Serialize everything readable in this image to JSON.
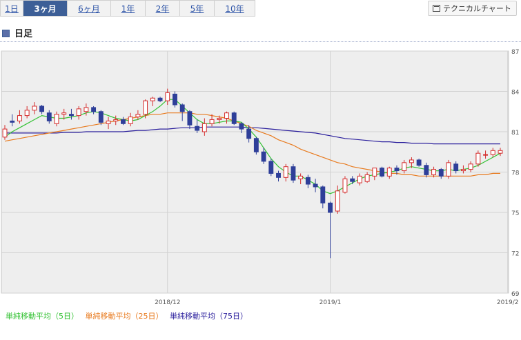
{
  "range_tabs": [
    {
      "label": "1日",
      "active": false
    },
    {
      "label": "3ヶ月",
      "active": true
    },
    {
      "label": "6ヶ月",
      "active": false
    },
    {
      "label": "1年",
      "active": false
    },
    {
      "label": "2年",
      "active": false
    },
    {
      "label": "5年",
      "active": false
    },
    {
      "label": "10年",
      "active": false
    }
  ],
  "technical_button_label": "テクニカルチャート",
  "section_label": "日足",
  "chart_data": {
    "type": "candlestick",
    "y_ticks": [
      "87",
      "84",
      "81",
      "78",
      "75",
      "72",
      "69"
    ],
    "ylim": [
      69,
      87
    ],
    "x_tick_labels": [
      "2018/12",
      "2019/1",
      "2019/2"
    ],
    "x_tick_index": [
      22,
      44,
      68
    ],
    "grid": true,
    "up_color": "#d42a2a",
    "down_color": "#2e3f99",
    "candles": [
      [
        80.6,
        81.5,
        80.4,
        81.2
      ],
      [
        81.8,
        82.3,
        81.4,
        81.7
      ],
      [
        81.8,
        82.6,
        81.6,
        82.2
      ],
      [
        82.2,
        82.9,
        82.0,
        82.6
      ],
      [
        82.6,
        83.2,
        82.3,
        82.9
      ],
      [
        82.9,
        83.0,
        82.3,
        82.5
      ],
      [
        82.4,
        82.6,
        81.6,
        81.8
      ],
      [
        81.6,
        82.5,
        81.4,
        82.3
      ],
      [
        82.3,
        82.7,
        81.9,
        82.4
      ],
      [
        82.3,
        82.7,
        81.9,
        82.2
      ],
      [
        82.2,
        82.9,
        81.9,
        82.7
      ],
      [
        82.5,
        83.1,
        82.2,
        82.8
      ],
      [
        82.8,
        82.9,
        82.3,
        82.5
      ],
      [
        82.5,
        82.6,
        81.5,
        81.7
      ],
      [
        81.6,
        82.1,
        81.2,
        81.8
      ],
      [
        81.8,
        82.2,
        81.5,
        81.9
      ],
      [
        81.9,
        82.1,
        81.5,
        81.6
      ],
      [
        81.6,
        82.4,
        81.4,
        82.1
      ],
      [
        82.1,
        82.6,
        81.9,
        82.3
      ],
      [
        82.3,
        83.4,
        82.0,
        83.3
      ],
      [
        83.3,
        83.6,
        82.9,
        83.5
      ],
      [
        83.5,
        83.6,
        83.2,
        83.3
      ],
      [
        83.3,
        84.2,
        83.0,
        83.9
      ],
      [
        83.8,
        84.0,
        82.8,
        83.0
      ],
      [
        83.0,
        83.1,
        81.8,
        82.5
      ],
      [
        82.5,
        82.6,
        81.2,
        81.5
      ],
      [
        81.4,
        81.9,
        80.9,
        81.1
      ],
      [
        81.0,
        82.0,
        80.7,
        81.6
      ],
      [
        81.6,
        82.3,
        81.4,
        81.9
      ],
      [
        81.9,
        82.2,
        81.6,
        82.0
      ],
      [
        82.0,
        82.5,
        81.6,
        82.4
      ],
      [
        82.4,
        82.5,
        81.5,
        81.6
      ],
      [
        81.6,
        81.7,
        80.9,
        81.2
      ],
      [
        81.2,
        81.5,
        80.2,
        80.5
      ],
      [
        80.5,
        80.6,
        79.3,
        79.5
      ],
      [
        79.5,
        79.8,
        78.6,
        78.8
      ],
      [
        78.8,
        79.0,
        77.7,
        77.9
      ],
      [
        77.9,
        78.1,
        77.3,
        77.6
      ],
      [
        77.6,
        78.6,
        77.3,
        78.4
      ],
      [
        78.4,
        78.6,
        77.2,
        77.4
      ],
      [
        77.5,
        77.9,
        77.1,
        77.7
      ],
      [
        77.6,
        77.8,
        76.8,
        77.1
      ],
      [
        77.1,
        77.5,
        76.5,
        76.9
      ],
      [
        76.9,
        77.0,
        75.3,
        75.7
      ],
      [
        75.7,
        75.8,
        71.6,
        75.0
      ],
      [
        75.1,
        77.0,
        74.9,
        76.6
      ],
      [
        76.5,
        77.7,
        76.4,
        77.5
      ],
      [
        77.5,
        77.7,
        77.1,
        77.3
      ],
      [
        77.2,
        77.9,
        77.0,
        77.7
      ],
      [
        77.3,
        78.0,
        77.2,
        77.8
      ],
      [
        77.7,
        78.3,
        77.4,
        78.3
      ],
      [
        78.3,
        78.4,
        77.6,
        77.7
      ],
      [
        77.7,
        78.4,
        77.5,
        78.3
      ],
      [
        78.3,
        78.5,
        77.8,
        78.1
      ],
      [
        78.1,
        78.9,
        77.9,
        78.7
      ],
      [
        78.7,
        79.1,
        78.3,
        78.9
      ],
      [
        78.9,
        79.0,
        78.4,
        78.5
      ],
      [
        78.5,
        78.7,
        77.6,
        77.8
      ],
      [
        77.8,
        78.4,
        77.6,
        78.2
      ],
      [
        78.2,
        78.3,
        77.5,
        77.7
      ],
      [
        77.7,
        78.9,
        77.5,
        78.7
      ],
      [
        78.6,
        78.8,
        77.9,
        78.1
      ],
      [
        78.1,
        78.5,
        77.9,
        78.2
      ],
      [
        78.2,
        78.8,
        78.0,
        78.6
      ],
      [
        78.6,
        79.6,
        78.4,
        79.4
      ],
      [
        79.3,
        79.6,
        79.0,
        79.3
      ],
      [
        79.3,
        79.8,
        79.1,
        79.6
      ],
      [
        79.4,
        79.8,
        79.2,
        79.6
      ]
    ],
    "series": [
      {
        "name": "単純移動平均（5日）",
        "color": "#33c233",
        "values": [
          80.6,
          81.0,
          81.3,
          81.6,
          81.9,
          82.2,
          82.1,
          82.0,
          82.0,
          82.1,
          82.2,
          82.4,
          82.5,
          82.4,
          82.2,
          82.0,
          81.9,
          81.8,
          81.9,
          82.2,
          82.5,
          82.9,
          83.4,
          83.4,
          82.9,
          82.4,
          81.9,
          81.6,
          81.6,
          81.7,
          81.8,
          81.8,
          81.7,
          81.2,
          80.6,
          79.8,
          79.0,
          78.4,
          78.0,
          77.7,
          77.7,
          77.4,
          77.1,
          76.6,
          76.4,
          76.6,
          76.9,
          77.2,
          77.5,
          77.7,
          77.8,
          77.9,
          78.0,
          78.1,
          78.3,
          78.4,
          78.3,
          78.2,
          78.1,
          78.1,
          78.2,
          78.1,
          78.2,
          78.3,
          78.5,
          78.8,
          79.1,
          79.4
        ]
      },
      {
        "name": "単純移動平均（25日）",
        "color": "#e87a1e",
        "values": [
          80.3,
          80.4,
          80.5,
          80.6,
          80.7,
          80.8,
          80.9,
          81.0,
          81.1,
          81.2,
          81.3,
          81.4,
          81.5,
          81.6,
          81.7,
          81.8,
          81.9,
          82.0,
          82.1,
          82.2,
          82.3,
          82.3,
          82.4,
          82.4,
          82.4,
          82.4,
          82.3,
          82.3,
          82.2,
          82.1,
          82.0,
          81.8,
          81.6,
          81.4,
          81.1,
          80.9,
          80.7,
          80.4,
          80.2,
          80.0,
          79.7,
          79.5,
          79.3,
          79.1,
          78.9,
          78.7,
          78.6,
          78.4,
          78.3,
          78.2,
          78.1,
          78.0,
          77.9,
          77.9,
          77.8,
          77.8,
          77.7,
          77.7,
          77.7,
          77.7,
          77.7,
          77.7,
          77.7,
          77.7,
          77.8,
          77.8,
          77.9,
          77.9
        ]
      },
      {
        "name": "単純移動平均（75日）",
        "color": "#2a1e9c",
        "values": [
          80.9,
          80.9,
          80.9,
          80.9,
          80.9,
          80.9,
          80.9,
          80.9,
          80.95,
          80.95,
          80.95,
          81.0,
          81.0,
          81.0,
          81.0,
          81.0,
          81.0,
          81.05,
          81.1,
          81.1,
          81.15,
          81.2,
          81.2,
          81.25,
          81.3,
          81.3,
          81.3,
          81.35,
          81.35,
          81.35,
          81.35,
          81.35,
          81.35,
          81.3,
          81.3,
          81.25,
          81.2,
          81.15,
          81.1,
          81.05,
          81.0,
          80.95,
          80.9,
          80.8,
          80.7,
          80.6,
          80.5,
          80.45,
          80.4,
          80.35,
          80.3,
          80.25,
          80.25,
          80.2,
          80.2,
          80.15,
          80.15,
          80.15,
          80.1,
          80.1,
          80.1,
          80.1,
          80.1,
          80.1,
          80.1,
          80.1,
          80.1,
          80.1
        ]
      }
    ]
  }
}
